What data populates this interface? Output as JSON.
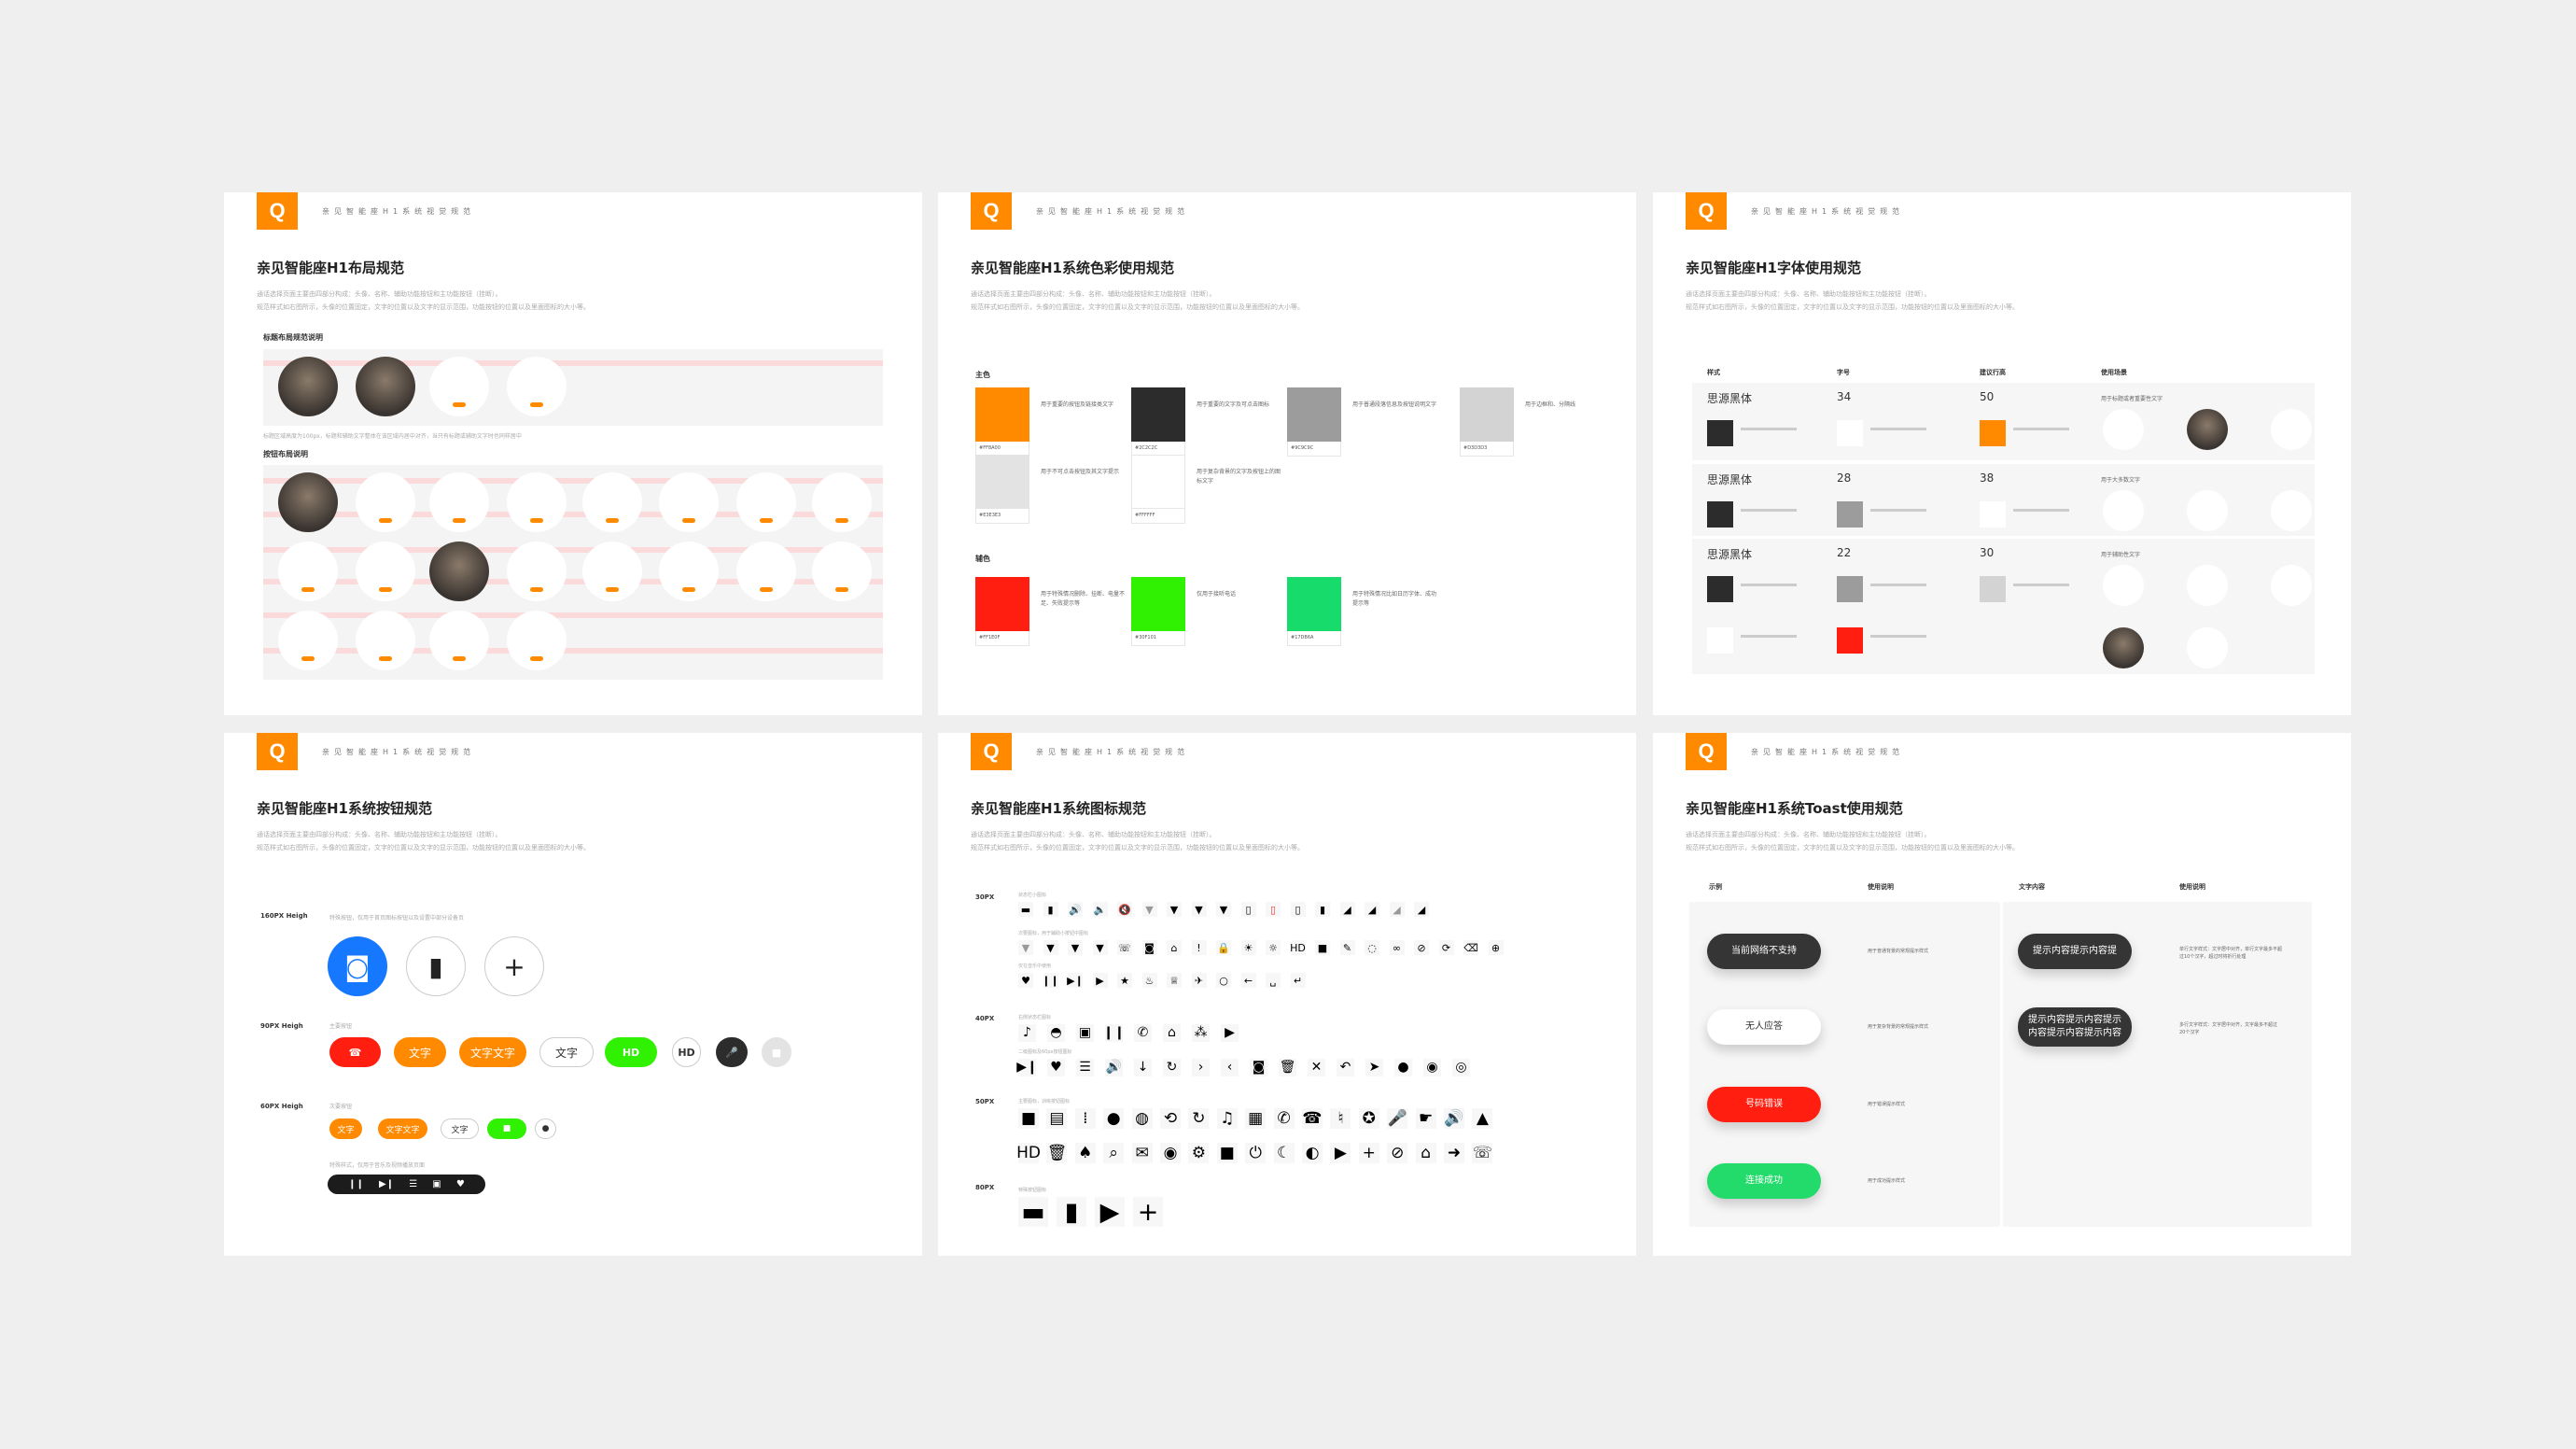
{
  "brand": {
    "logo_letter": "Q",
    "accent": "#FF8A00",
    "header": "亲见智能座H1系统视觉规范"
  },
  "common": {
    "desc1": "通话选择页面主要由四部分构成：头像、名称、辅助功能按钮和主功能按钮（挂断）。",
    "desc2": "规范样式如右图所示，头像的位置固定，文字的位置以及文字的显示范围，功能按钮的位置以及里面图标的大小等。"
  },
  "layout": {
    "title": "亲见智能座H1布局规范",
    "section1": "标题布局规范说明",
    "caption1": "标题区域高度为100px，标题和辅助文字整体在该区域内居中对齐，当只有标题或辅助文字时也同样居中",
    "section2": "按钮布局说明",
    "row_top": [
      "photo",
      "photo",
      "screen",
      "screen"
    ],
    "grid": [
      [
        "photo",
        "screen",
        "screen",
        "screen",
        "screen",
        "screen",
        "screen",
        "screen"
      ],
      [
        "screen",
        "screen",
        "photo",
        "screen",
        "screen",
        "screen",
        "screen",
        "screen"
      ],
      [
        "screen",
        "screen",
        "screen",
        "screen"
      ]
    ]
  },
  "colors": {
    "title": "亲见智能座H1系统色彩使用规范",
    "primary_label": "主色",
    "secondary_label": "辅色",
    "primary": [
      {
        "hex": "#FF8A00",
        "desc": "用于重要的按钮及链接类文字"
      },
      {
        "hex": "#2C2C2C",
        "desc": "用于重要的文字及可点击图标"
      },
      {
        "hex": "#9C9C9C",
        "desc": "用于普通段落信息及按钮说明文字"
      },
      {
        "hex": "#D3D3D3",
        "desc": "用于边框和、分隔线"
      },
      {
        "hex": "#E3E3E3",
        "desc": "用于不可点击按钮及其文字提示"
      },
      {
        "hex": "#FFFFFF",
        "desc": "用于复杂背景的文字及按钮上的图标文字"
      }
    ],
    "secondary": [
      {
        "hex": "#FF1E0F",
        "desc": "用于特殊情况删除、挂断、电量不足、失败提示等"
      },
      {
        "hex": "#30F101",
        "desc": "仅用于接听电话"
      },
      {
        "hex": "#17DB6A",
        "desc": "用于特殊情况比如日历字体、成功提示等"
      }
    ]
  },
  "fonts": {
    "title": "亲见智能座H1字体使用规范",
    "headers": [
      "样式",
      "字号",
      "建议行高",
      "使用场景"
    ],
    "rows": [
      {
        "style": "思源黑体",
        "size": "34",
        "line": "50",
        "usage": "用于标题或者重要性文字",
        "swatches": [
          "#2C2C2C",
          "#FFFFFF",
          "#FF8A00"
        ]
      },
      {
        "style": "思源黑体",
        "size": "28",
        "line": "38",
        "usage": "用于大多数文字",
        "swatches": [
          "#2C2C2C",
          "#9C9C9C",
          "#FFFFFF"
        ]
      },
      {
        "style": "思源黑体",
        "size": "22",
        "line": "30",
        "usage": "用于辅助性文字",
        "swatches": [
          "#2C2C2C",
          "#9C9C9C",
          "#D3D3D3",
          "#FFFFFF",
          "#FF1E0F"
        ]
      }
    ]
  },
  "buttons": {
    "title": "亲见智能座H1系统按钮规范",
    "h160": {
      "label": "160PX Heigh",
      "desc": "特殊按钮，仅用于首页图标按钮以及设置中部分设备页"
    },
    "h90": {
      "label": "90PX Heigh",
      "desc": "主要按钮",
      "items": [
        {
          "icon": "hangup-icon",
          "bg": "#FF1E0F"
        },
        {
          "text": "文字",
          "bg": "#FF8A00"
        },
        {
          "text": "文字文字",
          "bg": "#FF8A00"
        },
        {
          "text": "文字",
          "bg": "#FFFFFF"
        },
        {
          "icon": "hd-video-icon",
          "bg": "#30F101"
        },
        {
          "icon": "hd-video-icon",
          "bg": "#FFFFFF"
        },
        {
          "icon": "microphone-icon",
          "bg": "#2C2C2C"
        },
        {
          "icon": "video-icon",
          "bg": "#E3E3E3"
        }
      ]
    },
    "h60": {
      "label": "60PX Heigh",
      "desc": "次要按钮",
      "items": [
        {
          "text": "文字",
          "bg": "#FF8A00"
        },
        {
          "text": "文字文字",
          "bg": "#FF8A00"
        },
        {
          "text": "文字",
          "bg": "#FFFFFF"
        },
        {
          "icon": "video-icon",
          "bg": "#30F101"
        },
        {
          "icon": "user-icon",
          "bg": "#FFFFFF"
        }
      ]
    },
    "player": {
      "desc": "特殊样式，仅用于音乐及视频播放页面",
      "icons": [
        "pause-icon",
        "next-icon",
        "list-icon",
        "screen-icon",
        "heart-icon"
      ]
    }
  },
  "icons": {
    "title": "亲见智能座H1系统图标规范",
    "groups": [
      {
        "size": "30PX",
        "rows": [
          {
            "desc": "状态栏小图标",
            "icons": [
              "bed-icon",
              "phone-device-icon",
              "volume-icon",
              "speaker-icon",
              "mute-icon",
              "wifi-1-icon",
              "wifi-2-icon",
              "wifi-3-icon",
              "wifi-4-icon",
              "battery-charging-icon",
              "battery-low-icon",
              "battery-mid-icon",
              "battery-full-icon",
              "signal-1-icon",
              "signal-2-icon",
              "signal-3-icon",
              "signal-4-icon"
            ]
          },
          {
            "desc": "次要图标，用于辅助小按钮中图标",
            "icons": [
              "wifi-1-icon",
              "wifi-2-icon",
              "wifi-3-icon",
              "wifi-4-icon",
              "call-out-icon",
              "camera-icon",
              "home-icon",
              "alert-icon",
              "lock-icon",
              "brightness-high-icon",
              "brightness-low-icon",
              "hd-video-icon",
              "video-icon",
              "pen-icon",
              "loading-icon",
              "link-icon",
              "unlink-icon",
              "refresh-icon",
              "delete-back-icon",
              "add-circle-icon"
            ]
          },
          {
            "desc": "仅在音乐中使用",
            "icons": [
              "heart-icon",
              "pause-icon",
              "next-icon",
              "play-icon",
              "star-icon",
              "cake-icon",
              "cup-icon",
              "plane-icon",
              "ring-icon",
              "arrow-left-icon",
              "space-icon",
              "enter-icon"
            ]
          }
        ]
      },
      {
        "size": "40PX",
        "rows": [
          {
            "desc": "右侧状态栏图标",
            "icons": [
              "bell-dot-icon",
              "dome-icon",
              "screen-icon",
              "pause-icon",
              "phone-icon",
              "home-icon",
              "group-icon",
              "play-icon"
            ]
          },
          {
            "desc": "二级图标及60px按钮图标",
            "icons": [
              "next-icon",
              "heart-icon",
              "list-icon",
              "volume-icon",
              "arrow-down-icon",
              "rotate-icon",
              "chevron-right-icon",
              "chevron-left-icon",
              "camera-icon",
              "trash-icon",
              "close-icon",
              "undo-icon",
              "send-icon",
              "user-icon",
              "user-settings-icon",
              "users-icon"
            ]
          }
        ]
      },
      {
        "size": "50PX",
        "rows": [
          {
            "desc": "主要图标，训练按钮图标",
            "icons": [
              "video-icon",
              "message-icon",
              "keypad-icon",
              "user-icon",
              "keyhole-icon",
              "sync-icon",
              "rotate-icon",
              "bell-icon",
              "calendar-icon",
              "phone-icon",
              "hangup-icon",
              "bell-off-icon",
              "reel-icon",
              "microphone-icon",
              "pointer-icon",
              "volume-icon",
              "image-icon"
            ]
          },
          {
            "desc": "",
            "icons": [
              "hd-video-icon",
              "trash-icon",
              "broom-icon",
              "search-icon",
              "call-message-icon",
              "eye-icon",
              "gear-icon",
              "stop-icon",
              "power-icon",
              "moon-icon",
              "user-add-icon",
              "play-icon",
              "plus-icon",
              "mic-off-icon",
              "home-icon",
              "arrow-right-icon",
              "phone-ring-icon"
            ]
          }
        ]
      },
      {
        "size": "80PX",
        "rows": [
          {
            "desc": "特殊按钮图标",
            "icons": [
              "bed-icon",
              "phone-device-icon",
              "play-icon",
              "plus-icon"
            ]
          }
        ]
      }
    ]
  },
  "toast": {
    "title": "亲见智能座H1系统Toast使用规范",
    "headers": [
      "示例",
      "使用说明",
      "文字内容",
      "使用说明"
    ],
    "left": [
      {
        "text": "当前网络不支持",
        "bg": "#353535",
        "color": "#FFFFFF",
        "desc": "用于普通背景的常规提示样式"
      },
      {
        "text": "无人应答",
        "bg": "#FFFFFF",
        "color": "#333333",
        "desc": "用于复杂背景的常规提示样式"
      },
      {
        "text": "号码错误",
        "bg": "#FF1E0F",
        "color": "#FFFFFF",
        "desc": "用于错误提示样式"
      },
      {
        "text": "连接成功",
        "bg": "#22DB6A",
        "color": "#FFFFFF",
        "desc": "用于成功提示样式"
      }
    ],
    "right": [
      {
        "text": "提示内容提示内容提",
        "desc": "单行文字样式：文字居中对齐，单行文字最多不超过10个汉字，超过时将折行处理"
      },
      {
        "text": "提示内容提示内容提示内容提示内容提示内容",
        "desc": "多行文字样式：文字居中对齐，文字最多不超过20个汉字"
      }
    ]
  }
}
